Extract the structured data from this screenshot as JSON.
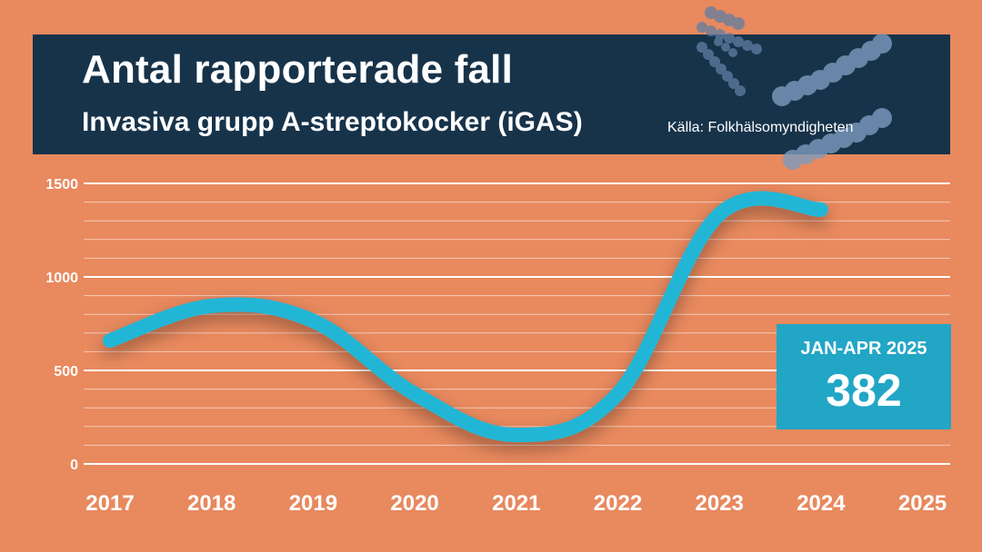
{
  "header": {
    "title": "Antal rapporterade fall",
    "subtitle": "Invasiva grupp A-streptokocker (iGAS)",
    "source": "Källa: Folkhälsomyndigheten"
  },
  "callout": {
    "label": "JAN-APR 2025",
    "value": "382"
  },
  "colors": {
    "background": "#e8895e",
    "header": "#17334a",
    "line": "#22b6d6",
    "callout": "#22a6c6",
    "gridline": "#ffffff"
  },
  "chart_data": {
    "type": "line",
    "title": "Antal rapporterade fall",
    "subtitle": "Invasiva grupp A-streptokocker (iGAS)",
    "categories": [
      "2017",
      "2018",
      "2019",
      "2020",
      "2021",
      "2022",
      "2023",
      "2024",
      "2025"
    ],
    "series": [
      {
        "values": [
          660,
          845,
          765,
          375,
          155,
          375,
          1335,
          1360,
          null
        ]
      }
    ],
    "y_ticks": [
      "0",
      "500",
      "1000",
      "1500"
    ],
    "ylim": [
      0,
      1500
    ],
    "grid": true,
    "legend": "none"
  }
}
